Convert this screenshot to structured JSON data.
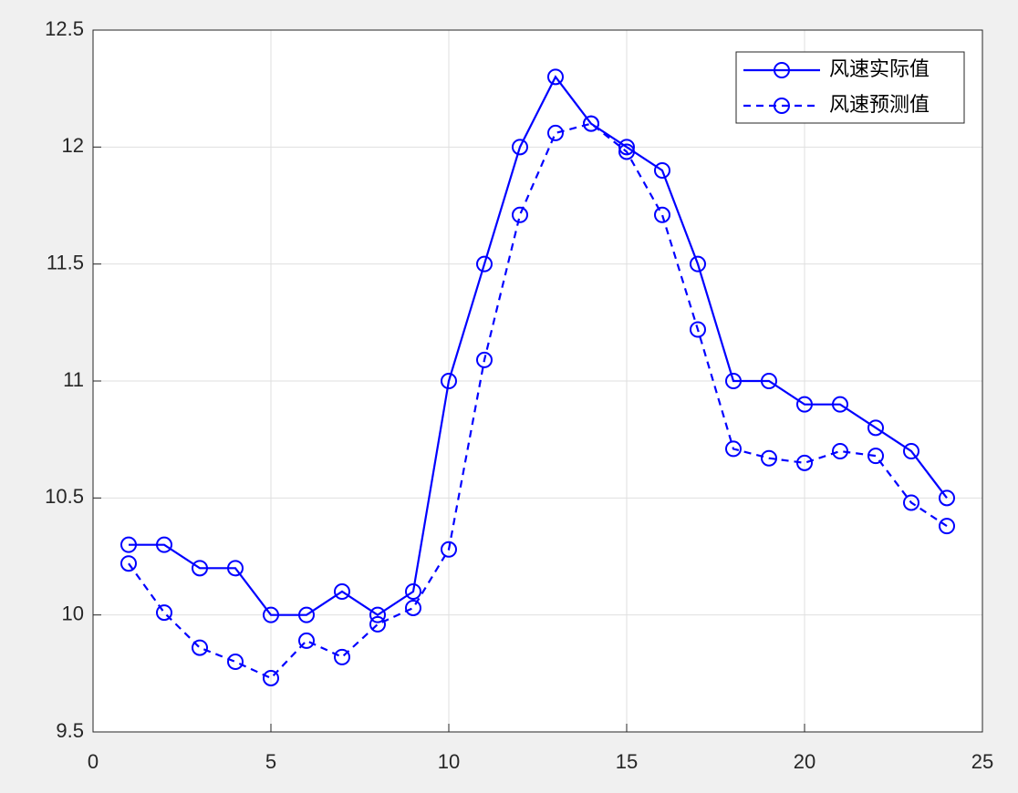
{
  "chart_data": {
    "type": "line",
    "x": [
      1,
      2,
      3,
      4,
      5,
      6,
      7,
      8,
      9,
      10,
      11,
      12,
      13,
      14,
      15,
      16,
      17,
      18,
      19,
      20,
      21,
      22,
      23,
      24
    ],
    "series": [
      {
        "name": "风速实际值",
        "color": "#0000ff",
        "line_style": "solid",
        "marker": "circle",
        "values": [
          10.3,
          10.3,
          10.2,
          10.2,
          10.0,
          10.0,
          10.1,
          10.0,
          10.1,
          11.0,
          11.5,
          12.0,
          12.3,
          12.1,
          12.0,
          11.9,
          11.5,
          11.0,
          11.0,
          10.9,
          10.9,
          10.8,
          10.7,
          10.5
        ]
      },
      {
        "name": "风速预测值",
        "color": "#0000ff",
        "line_style": "dashed",
        "marker": "circle",
        "values": [
          10.22,
          10.01,
          9.86,
          9.8,
          9.73,
          9.89,
          9.82,
          9.96,
          10.03,
          10.28,
          11.09,
          11.71,
          12.06,
          12.1,
          11.98,
          11.71,
          11.22,
          10.71,
          10.67,
          10.65,
          10.7,
          10.68,
          10.48,
          10.38
        ]
      }
    ],
    "xlim": [
      0,
      25
    ],
    "xticks": [
      0,
      5,
      10,
      15,
      20,
      25
    ],
    "ylim": [
      9.5,
      12.5
    ],
    "yticks": [
      9.5,
      10,
      10.5,
      11,
      11.5,
      12,
      12.5
    ],
    "grid": true,
    "legend": "northeast"
  }
}
